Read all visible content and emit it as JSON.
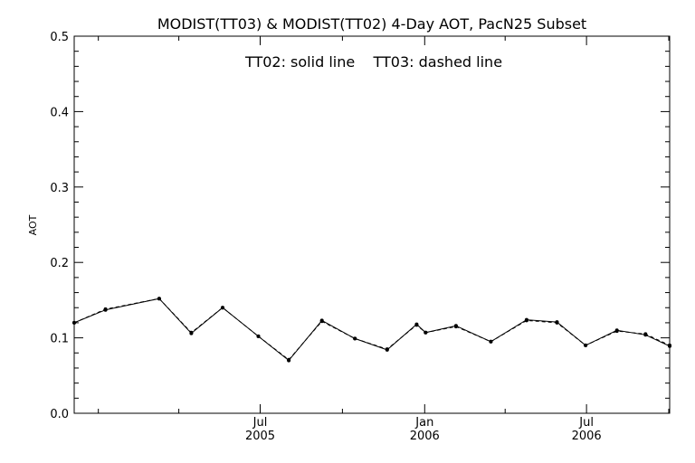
{
  "chart_data": {
    "type": "line",
    "title": "MODIST(TT03) & MODIST(TT02) 4-Day AOT, PacN25 Subset",
    "annotation": "TT02: solid line    TT03: dashed line",
    "xlabel": "",
    "ylabel": "AOT",
    "ylim": [
      0,
      0.5
    ],
    "yticks": [
      "0.0",
      "0.1",
      "0.2",
      "0.3",
      "0.4",
      "0.5"
    ],
    "xlim": [
      "2004-12-05",
      "2006-10-02"
    ],
    "xticks": [
      {
        "date": "2005-07-01",
        "month": "Jul",
        "year": "2005"
      },
      {
        "date": "2006-01-01",
        "month": "Jan",
        "year": "2006"
      },
      {
        "date": "2006-07-01",
        "month": "Jul",
        "year": "2006"
      }
    ],
    "minor_ticks": [
      "2005-01-01",
      "2005-04-01",
      "2005-10-01",
      "2006-04-01",
      "2006-10-01"
    ],
    "grid": false,
    "series": [
      {
        "name": "TT02",
        "style": "solid",
        "x": [
          "2004-12-05",
          "2005-01-09",
          "2005-03-10",
          "2005-04-15",
          "2005-05-20",
          "2005-06-29",
          "2005-08-02",
          "2005-09-08",
          "2005-10-15",
          "2005-11-20",
          "2005-12-23",
          "2006-01-02",
          "2006-02-05",
          "2006-03-16",
          "2006-04-25",
          "2006-05-29",
          "2006-06-30",
          "2006-08-04",
          "2006-09-05",
          "2006-10-02"
        ],
        "values": [
          0.12,
          0.137,
          0.152,
          0.106,
          0.14,
          0.102,
          0.07,
          0.123,
          0.099,
          0.084,
          0.118,
          0.107,
          0.116,
          0.095,
          0.124,
          0.121,
          0.09,
          0.11,
          0.104,
          0.089
        ]
      },
      {
        "name": "TT03",
        "style": "dashed",
        "x": [
          "2004-12-05",
          "2005-01-09",
          "2005-03-10",
          "2005-04-15",
          "2005-05-20",
          "2005-06-29",
          "2005-08-02",
          "2005-09-08",
          "2005-10-15",
          "2005-11-20",
          "2005-12-23",
          "2006-01-02",
          "2006-02-05",
          "2006-03-16",
          "2006-04-25",
          "2006-05-29",
          "2006-06-30",
          "2006-08-04",
          "2006-09-05",
          "2006-10-02"
        ],
        "values": [
          0.12,
          0.138,
          0.152,
          0.107,
          0.14,
          0.102,
          0.071,
          0.122,
          0.099,
          0.085,
          0.117,
          0.107,
          0.115,
          0.095,
          0.123,
          0.12,
          0.09,
          0.109,
          0.105,
          0.09
        ]
      }
    ]
  }
}
